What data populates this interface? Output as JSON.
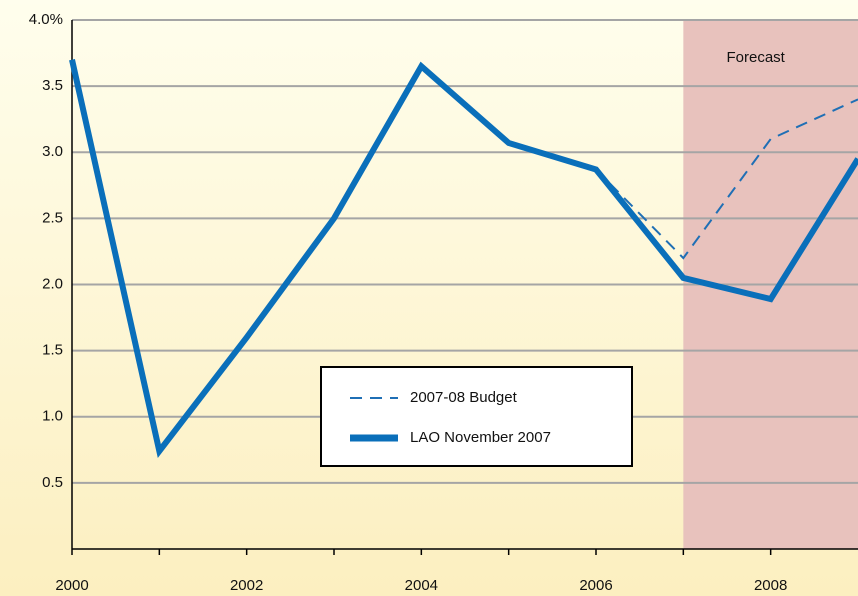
{
  "chart_data": {
    "type": "line",
    "x": [
      2000,
      2001,
      2002,
      2003,
      2004,
      2005,
      2006,
      2007,
      2008,
      2009
    ],
    "series": [
      {
        "name": "2007-08 Budget",
        "color": "#1f6fb5",
        "dashed": true,
        "values": [
          null,
          null,
          null,
          null,
          null,
          null,
          2.87,
          2.2,
          3.1,
          3.4
        ]
      },
      {
        "name": "LAO November 2007",
        "color": "#0a6fba",
        "dashed": false,
        "values": [
          3.7,
          0.74,
          1.6,
          2.5,
          3.65,
          3.07,
          2.87,
          2.05,
          1.89,
          2.95
        ]
      }
    ],
    "xlim": [
      2000,
      2009
    ],
    "xticks": [
      2000,
      2002,
      2004,
      2006,
      2008
    ],
    "xminor_ticks": [
      2001,
      2003,
      2005,
      2007
    ],
    "ylim": [
      0,
      4
    ],
    "yticks": [
      0.5,
      {
        "value": 1,
        "label": "1.0"
      },
      1.5,
      {
        "value": 2,
        "label": "2.0"
      },
      2.5,
      {
        "value": 3,
        "label": "3.0"
      },
      3.5,
      {
        "value": 4,
        "label": "4.0%"
      }
    ],
    "grid": true,
    "forecast_region": [
      2007,
      2009
    ],
    "forecast_label": "Forecast",
    "forecast_color": "#e8c2bd"
  }
}
